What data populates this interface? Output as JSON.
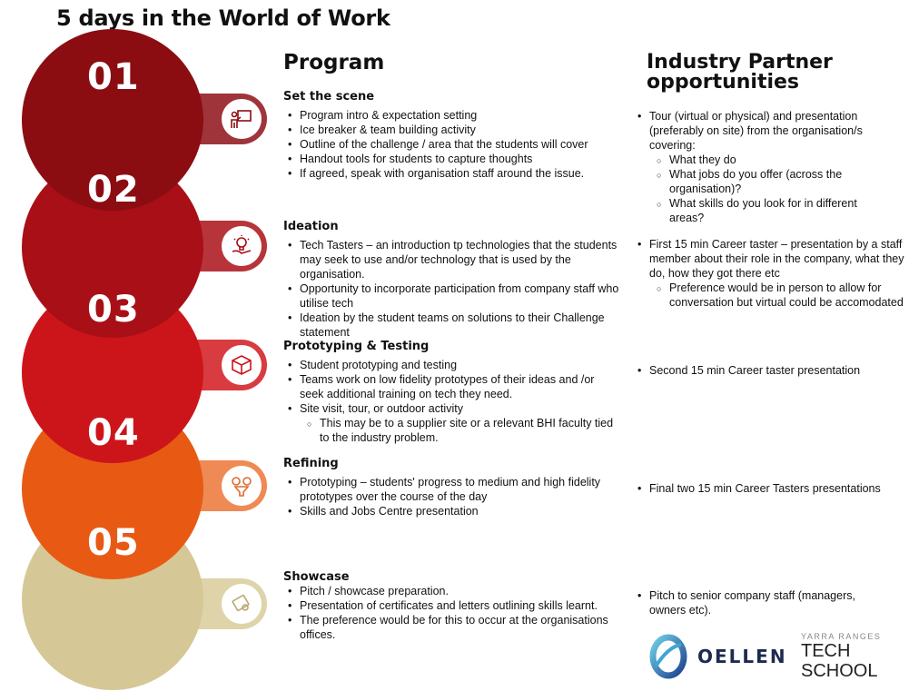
{
  "title": "5 days in the World of Work",
  "program_heading": "Program",
  "industry_heading_line1": "Industry  Partner",
  "industry_heading_line2": "opportunities",
  "colors": {
    "day1": "#8b0d12",
    "day2": "#a80f17",
    "day3": "#cc151a",
    "day4": "#e85a14",
    "day5": "#d5c896",
    "tab1": "#a0343b",
    "tab2": "#b8343b",
    "tab3": "#d83b40",
    "tab4": "#ef8a55",
    "tab5": "#dfd3a9"
  },
  "days": [
    {
      "number": "01",
      "icon": "presentation-icon"
    },
    {
      "number": "02",
      "icon": "idea-bulb-hand-icon"
    },
    {
      "number": "03",
      "icon": "prototype-cube-icon"
    },
    {
      "number": "04",
      "icon": "gears-funnel-icon"
    },
    {
      "number": "05",
      "icon": "certificate-icon"
    }
  ],
  "program": [
    {
      "title": "Set the scene",
      "items": [
        "Program intro & expectation setting",
        "Ice breaker & team building activity",
        "Outline of the challenge / area that the students will cover",
        "Handout tools for students to capture thoughts",
        "If agreed, speak with organisation staff around the issue."
      ]
    },
    {
      "title": "Ideation",
      "items": [
        "Tech Tasters – an introduction tp technologies that the students may seek to use and/or technology that is used by the organisation.",
        "Opportunity to incorporate participation from company staff who utilise tech",
        "Ideation by the student teams on solutions to their Challenge statement"
      ]
    },
    {
      "title": "Prototyping & Testing",
      "items": [
        "Student prototyping and testing",
        " Teams work on low fidelity prototypes of their ideas and /or seek additional training on tech they need.",
        "Site visit, tour, or outdoor activity"
      ],
      "subitems": [
        "This may be to a supplier site or a relevant BHI faculty tied to the industry problem."
      ]
    },
    {
      "title": "Refining",
      "items": [
        "Prototyping – students' progress to medium and high fidelity prototypes over the course of the day",
        "Skills and Jobs Centre presentation"
      ]
    },
    {
      "title": "Showcase",
      "items": [
        "Pitch / showcase preparation.",
        "Presentation of certificates and letters outlining skills learnt.",
        " The preference would be for this to occur at the organisations offices."
      ]
    }
  ],
  "industry": [
    {
      "text": "Tour (virtual or physical) and presentation (preferably on site) from the organisation/s covering:",
      "subitems": [
        "What they do",
        "What jobs do you offer (across the organisation)?",
        "What skills do you look for in different areas?"
      ]
    },
    {
      "text": "First 15 min Career taster – presentation by a staff member about their role in the company, what they do, how they got there etc",
      "subitems": [
        "Preference would be in person to allow for conversation but virtual could be accomodated"
      ]
    },
    {
      "text": "Second 15 min Career taster presentation"
    },
    {
      "text": "Final two 15 min Career Tasters  presentations"
    },
    {
      "text": "Pitch to senior company staff (managers, owners etc)."
    }
  ],
  "logos": {
    "oellen": "OELLEN",
    "yarra_small": "YARRA RANGES",
    "yarra_tech": "TECH",
    "yarra_school": "SCHOOL"
  }
}
